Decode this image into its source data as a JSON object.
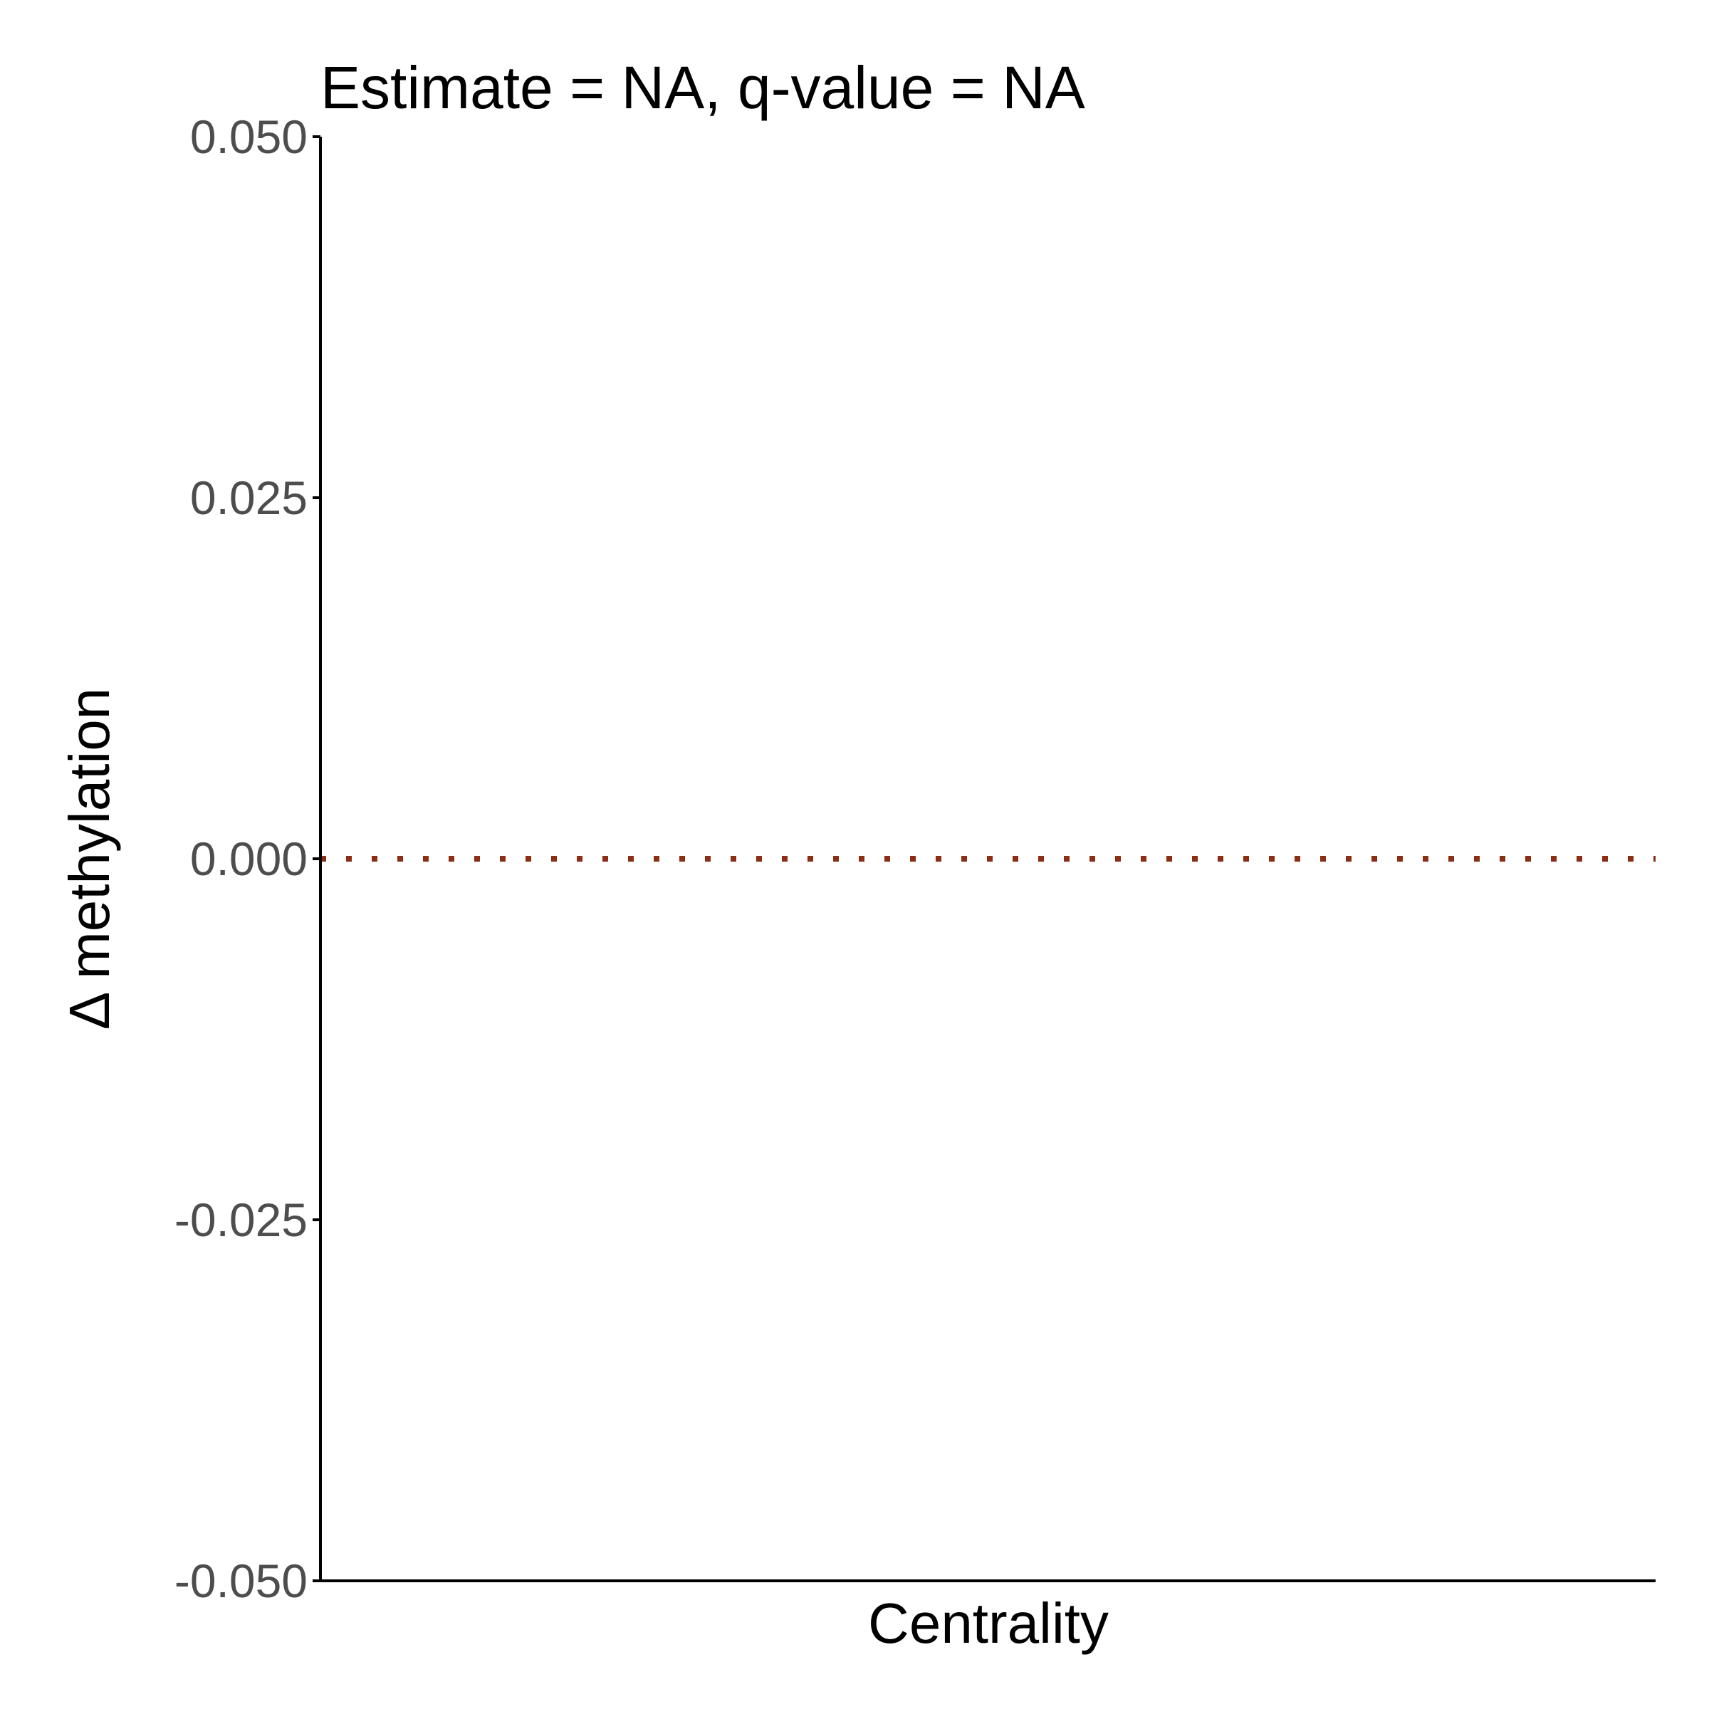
{
  "chart_data": {
    "type": "line",
    "title": "Estimate = NA, q-value = NA",
    "xlabel": "Centrality",
    "ylabel": "Δ methylation",
    "ylim": [
      -0.05,
      0.05
    ],
    "y_ticks": [
      {
        "value": 0.05,
        "label": "0.050"
      },
      {
        "value": 0.025,
        "label": "0.025"
      },
      {
        "value": 0.0,
        "label": "0.000"
      },
      {
        "value": -0.025,
        "label": "-0.025"
      },
      {
        "value": -0.05,
        "label": "-0.050"
      }
    ],
    "x_ticks": [],
    "series": [],
    "reference_line": {
      "y": 0.0,
      "style": "dotted",
      "color": "#8b2e14"
    },
    "grid": false,
    "legend": "none"
  },
  "colors": {
    "axis": "#000000",
    "tick_label": "#4d4d4d",
    "reference_line": "#8b2e14"
  }
}
